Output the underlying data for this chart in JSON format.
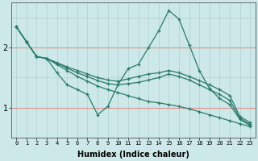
{
  "xlabel": "Humidex (Indice chaleur)",
  "bg_color": "#cce8e8",
  "line_color": "#2a7a6a",
  "grid_v_color": "#b0d0d0",
  "grid_h_pink": "#e09090",
  "grid_h_teal": "#b0d0d0",
  "xlim": [
    -0.5,
    23.5
  ],
  "ylim": [
    0.5,
    2.75
  ],
  "yticks": [
    1,
    2
  ],
  "xticks": [
    0,
    1,
    2,
    3,
    4,
    5,
    6,
    7,
    8,
    9,
    10,
    11,
    12,
    13,
    14,
    15,
    16,
    17,
    18,
    19,
    20,
    21,
    22,
    23
  ],
  "lines": [
    {
      "x": [
        0,
        1,
        2,
        3,
        4,
        5,
        6,
        7,
        8,
        9,
        10,
        11,
        12,
        13,
        14,
        15,
        16,
        17,
        18,
        19,
        20,
        21,
        22,
        23
      ],
      "y": [
        2.35,
        2.1,
        1.85,
        1.82,
        1.58,
        1.38,
        1.3,
        1.22,
        0.88,
        1.02,
        1.38,
        1.65,
        1.72,
        2.0,
        2.28,
        2.62,
        2.48,
        2.05,
        1.62,
        1.32,
        1.15,
        1.05,
        0.8,
        0.7
      ]
    },
    {
      "x": [
        0,
        1,
        2,
        3,
        4,
        5,
        6,
        7,
        8,
        9,
        10,
        11,
        12,
        13,
        14,
        15,
        16,
        17,
        18,
        19,
        20,
        21,
        22,
        23
      ],
      "y": [
        2.35,
        2.1,
        1.85,
        1.82,
        1.75,
        1.68,
        1.62,
        1.56,
        1.5,
        1.46,
        1.44,
        1.48,
        1.52,
        1.56,
        1.58,
        1.62,
        1.58,
        1.52,
        1.45,
        1.38,
        1.3,
        1.2,
        0.85,
        0.75
      ]
    },
    {
      "x": [
        0,
        1,
        2,
        3,
        4,
        5,
        6,
        7,
        8,
        9,
        10,
        11,
        12,
        13,
        14,
        15,
        16,
        17,
        18,
        19,
        20,
        21,
        22,
        23
      ],
      "y": [
        2.35,
        2.1,
        1.85,
        1.82,
        1.74,
        1.66,
        1.58,
        1.52,
        1.45,
        1.4,
        1.38,
        1.4,
        1.42,
        1.46,
        1.5,
        1.56,
        1.52,
        1.46,
        1.38,
        1.3,
        1.22,
        1.12,
        0.82,
        0.72
      ]
    },
    {
      "x": [
        0,
        1,
        2,
        3,
        4,
        5,
        6,
        7,
        8,
        9,
        10,
        11,
        12,
        13,
        14,
        15,
        16,
        17,
        18,
        19,
        20,
        21,
        22,
        23
      ],
      "y": [
        2.35,
        2.1,
        1.85,
        1.82,
        1.72,
        1.62,
        1.52,
        1.44,
        1.36,
        1.3,
        1.25,
        1.2,
        1.15,
        1.1,
        1.08,
        1.05,
        1.02,
        0.98,
        0.93,
        0.88,
        0.83,
        0.78,
        0.73,
        0.68
      ]
    }
  ]
}
